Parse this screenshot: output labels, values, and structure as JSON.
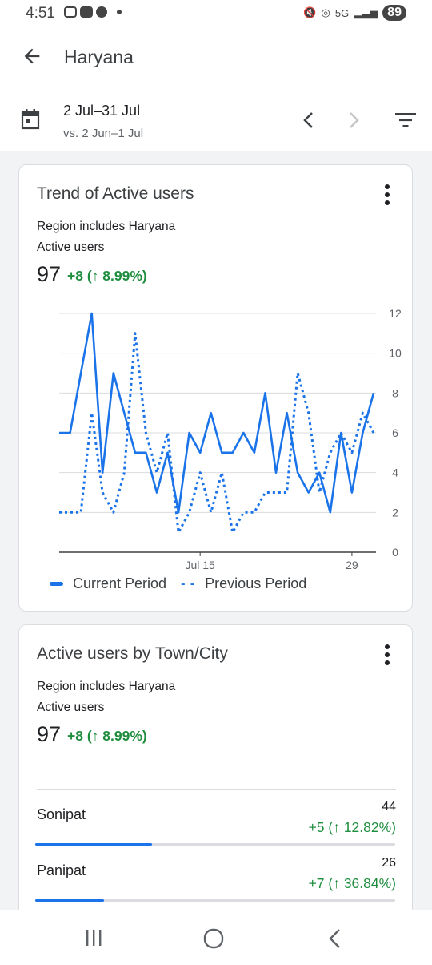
{
  "status_bar": {
    "time": "4:51",
    "network": "5G",
    "battery": "89"
  },
  "app_bar": {
    "title": "Haryana"
  },
  "date_bar": {
    "range": "2 Jul–31 Jul",
    "compare": "vs. 2 Jun–1 Jul"
  },
  "card_trend": {
    "title": "Trend of Active users",
    "filter_text": "Region includes Haryana",
    "metric_label": "Active users",
    "metric_value": "97",
    "delta": "+8 (↑ 8.99%)",
    "legend_current": "Current Period",
    "legend_previous": "Previous Period"
  },
  "card_city": {
    "title": "Active users by Town/City",
    "filter_text": "Region includes Haryana",
    "metric_label": "Active users",
    "metric_value": "97",
    "delta": "+8 (↑ 8.99%)",
    "rows": [
      {
        "name": "Sonipat",
        "value": "44",
        "delta": "+5 (↑ 12.82%)",
        "share": 0.3235
      },
      {
        "name": "Panipat",
        "value": "26",
        "delta": "+7 (↑ 36.84%)",
        "share": 0.19
      }
    ]
  },
  "chart_data": {
    "type": "line",
    "x_tick_labels": [
      "Jul 15",
      "29"
    ],
    "y_ticks": [
      0,
      2,
      4,
      6,
      8,
      10,
      12
    ],
    "ylim": [
      0,
      12
    ],
    "grid": true,
    "y_axis_side": "right",
    "legend_position": "bottom",
    "series": [
      {
        "name": "Current Period",
        "style": "solid",
        "color": "#1a73e8",
        "values": [
          6,
          6,
          9,
          12,
          4,
          9,
          7,
          5,
          5,
          3,
          5,
          2,
          6,
          5,
          7,
          5,
          5,
          6,
          5,
          8,
          4,
          7,
          4,
          3,
          4,
          2,
          6,
          3,
          6,
          8
        ]
      },
      {
        "name": "Previous Period",
        "style": "dashed",
        "color": "#1a73e8",
        "values": [
          2,
          2,
          2,
          7,
          3,
          2,
          4,
          11,
          6,
          4,
          6,
          1,
          2,
          4,
          2,
          4,
          1,
          2,
          2,
          3,
          3,
          3,
          9,
          7,
          3,
          5,
          6,
          5,
          7,
          6
        ]
      }
    ]
  },
  "colors": {
    "accent": "#1a73e8",
    "positive": "#1e8e3e"
  }
}
